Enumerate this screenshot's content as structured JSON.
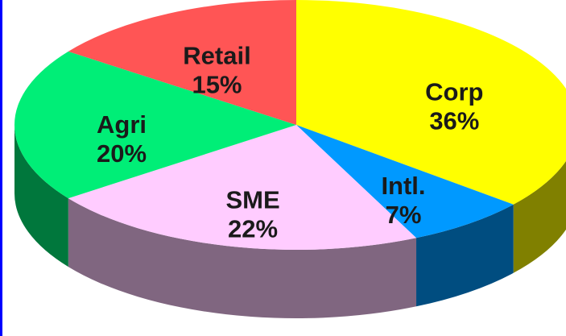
{
  "chart_data": {
    "type": "pie",
    "three_d": true,
    "categories": [
      "Corp",
      "Intl.",
      "SME",
      "Agri",
      "Retail"
    ],
    "values": [
      36,
      7,
      22,
      20,
      15
    ],
    "value_labels": [
      "36%",
      "7%",
      "22%",
      "20%",
      "15%"
    ],
    "colors": [
      "#ffff00",
      "#0099ff",
      "#ffccff",
      "#00ee77",
      "#ff5555"
    ]
  }
}
